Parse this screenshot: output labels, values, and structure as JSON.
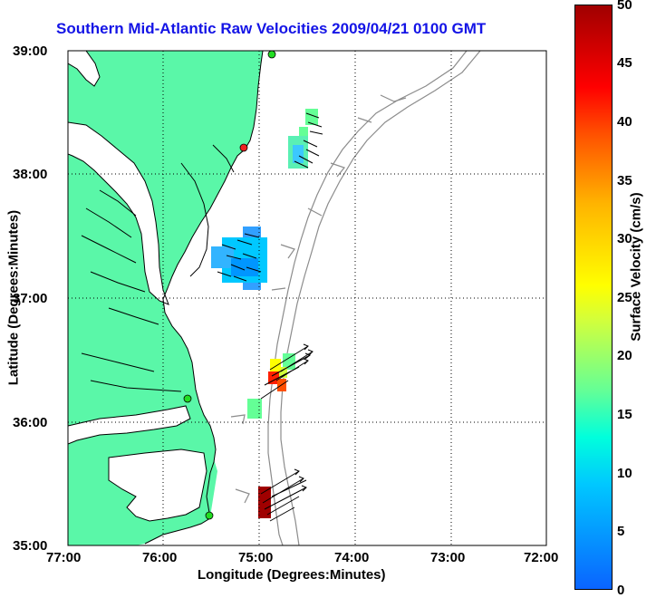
{
  "title": "Southern Mid-Atlantic Raw Velocities 2009/04/21 0100 GMT",
  "x_axis": {
    "label": "Longitude (Degrees:Minutes)",
    "ticks": [
      "77:00",
      "76:00",
      "75:00",
      "74:00",
      "73:00",
      "72:00"
    ]
  },
  "y_axis": {
    "label": "Latitude (Degrees:Minutes)",
    "ticks": [
      "39:00",
      "38:00",
      "37:00",
      "36:00",
      "35:00"
    ]
  },
  "colorbar": {
    "label": "Surface Velocity (cm/s)",
    "ticks": [
      "50",
      "45",
      "40",
      "35",
      "30",
      "25",
      "20",
      "15",
      "10",
      "5",
      "0"
    ],
    "min": 0,
    "max": 50
  },
  "map": {
    "extent": {
      "lon": [
        -77,
        -72
      ],
      "lat": [
        35,
        39
      ]
    },
    "grid": "dotted",
    "land_color": "#5af7a8",
    "coastline_color": "#000000",
    "bathymetry_color": "#8c8c8c",
    "site_colors": [
      "#22dd22",
      "#ee2222"
    ],
    "arrow_color": "#000000"
  }
}
